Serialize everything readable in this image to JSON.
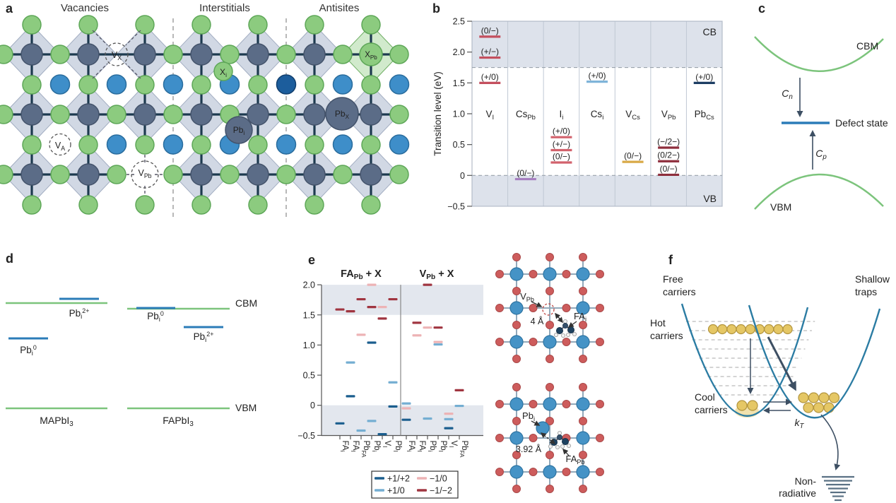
{
  "figure": {
    "panels": {
      "a": {
        "label": "a",
        "sections": [
          "Vacancies",
          "Interstitials",
          "Antisites"
        ],
        "defects": {
          "vx": "V_{X}",
          "va": "V_{A}",
          "vpb": "V_{Pb}",
          "xi": "X_{i}",
          "pbi": "Pb_{i}",
          "xpb": "X_{Pb}",
          "pbx": "Pb_{X}"
        }
      },
      "b": {
        "label": "b"
      },
      "c": {
        "label": "c",
        "cbm": "CBM",
        "vbm": "VBM",
        "defect_state": "Defect state",
        "cn": "C_{n}",
        "cp": "C_{p}"
      },
      "d": {
        "label": "d",
        "mapbi3": "MAPbI_{3}",
        "fapbi3": "FAPbI_{3}",
        "cbm": "CBM",
        "vbm": "VBM",
        "m_pb2": "Pb_{i}^{2+}",
        "m_pb0": "Pb_{i}^{0}",
        "f_pb0": "Pb_{i}^{0}",
        "f_pb2": "Pb_{i}^{2+}"
      },
      "e": {
        "label": "e",
        "structures": {
          "vpb": "V_{Pb}",
          "dist1": "4 Å",
          "fai": "FA_{i}",
          "pbi": "Pb_{i}",
          "dist2": "3.92 Å",
          "fapb": "FA_{Pb}"
        }
      },
      "f": {
        "label": "f",
        "free": {
          "l1": "Free",
          "l2": "carriers"
        },
        "shallow": {
          "l1": "Shallow",
          "l2": "traps"
        },
        "hot": {
          "l1": "Hot",
          "l2": "carriers"
        },
        "cool": {
          "l1": "Cool",
          "l2": "carriers"
        },
        "kt": "k_{T}",
        "nonrad": {
          "l1": "Non-",
          "l2": "radiative"
        }
      }
    },
    "colors": {
      "halide_green": "#8ccb7f",
      "octahedron_gray": "#c5cedd",
      "lead_slate": "#5b6c87",
      "cation_blue": "#3e8ec9",
      "cation_dark_blue": "#1c5d9c",
      "band_shade": "#dde2eb",
      "band_green": "#7cc47c",
      "level_blue": "#2b7cb8",
      "parabola_blue": "#2b7ca3",
      "carrier_yellow": "#e5c765",
      "iodine_red": "#cd5c5c",
      "pb_node_blue": "#4593c6"
    }
  },
  "chart_data": [
    {
      "id": "b",
      "type": "transition-levels",
      "ylabel": "Transition level (eV)",
      "ymin": -0.5,
      "ymax": 2.5,
      "yticks": [
        {
          "label": "2.5",
          "value": 2.5
        },
        {
          "label": "2.0",
          "value": 2.0
        },
        {
          "label": "1.5",
          "value": 1.5
        },
        {
          "label": "1.0",
          "value": 1.0
        },
        {
          "label": "0.5",
          "value": 0.5
        },
        {
          "label": "0",
          "value": 0.0
        },
        {
          "label": "−0.5",
          "value": -0.5
        }
      ],
      "cb": {
        "label": "CB",
        "edge": 1.75
      },
      "vb": {
        "label": "VB",
        "edge": 0.0
      },
      "columns": [
        {
          "name": "V_{I}",
          "color": "#c44f5e",
          "levels": [
            {
              "label": "(0/−)",
              "value": 2.25
            },
            {
              "label": "(+/−)",
              "value": 1.91
            },
            {
              "label": "(+/0)",
              "value": 1.5
            }
          ]
        },
        {
          "name": "Cs_{Pb}",
          "color": "#a77fc0",
          "levels": [
            {
              "label": "(0/−)",
              "value": -0.06
            }
          ]
        },
        {
          "name": "I_{i}",
          "color": "#d2626c",
          "levels": [
            {
              "label": "(+/0)",
              "value": 0.62
            },
            {
              "label": "(+/−)",
              "value": 0.41
            },
            {
              "label": "(0/−)",
              "value": 0.21
            }
          ]
        },
        {
          "name": "Cs_{i}",
          "color": "#7fb4d9",
          "levels": [
            {
              "label": "(+/0)",
              "value": 1.52
            }
          ]
        },
        {
          "name": "V_{Cs}",
          "color": "#d9a946",
          "levels": [
            {
              "label": "(0/−)",
              "value": 0.22
            }
          ]
        },
        {
          "name": "V_{Pb}",
          "color": "#8e2e3c",
          "levels": [
            {
              "label": "(−/2−)",
              "value": 0.45
            },
            {
              "label": "(0/2−)",
              "value": 0.23
            },
            {
              "label": "(0/−)",
              "value": 0.01
            }
          ]
        },
        {
          "name": "Pb_{Cs}",
          "color": "#1c3d63",
          "levels": [
            {
              "label": "(+/0)",
              "value": 1.5
            }
          ]
        }
      ]
    },
    {
      "id": "e",
      "type": "scatter-levels",
      "ymin": -0.5,
      "ymax": 2.0,
      "yticks": [
        {
          "label": "2.0",
          "value": 2.0
        },
        {
          "label": "1.5",
          "value": 1.5
        },
        {
          "label": "1.0",
          "value": 1.0
        },
        {
          "label": "0.5",
          "value": 0.5
        },
        {
          "label": "0",
          "value": 0.0
        },
        {
          "label": "−0.5",
          "value": -0.5
        }
      ],
      "shaded_bands": [
        [
          1.5,
          2.0
        ],
        [
          -0.5,
          0.0
        ]
      ],
      "charge_colors": {
        "+1/+2": "#1b5e8e",
        "+1/0": "#74aed2",
        "−1/0": "#edb3b5",
        "−1/−2": "#a03540"
      },
      "legend": [
        {
          "label": "+1/+2",
          "color": "#1b5e8e"
        },
        {
          "label": "+1/0",
          "color": "#74aed2"
        },
        {
          "label": "−1/0",
          "color": "#edb3b5"
        },
        {
          "label": "−1/−2",
          "color": "#a03540"
        }
      ],
      "groups": [
        {
          "title": "FA_{Pb} + X",
          "columns": [
            {
              "label": "FA_{i}",
              "marks": [
                {
                  "charge": "−1/−2",
                  "value": 1.59
                },
                {
                  "charge": "+1/+2",
                  "value": -0.3
                }
              ]
            },
            {
              "label": "FA_{I}",
              "marks": [
                {
                  "charge": "−1/−2",
                  "value": 1.56
                },
                {
                  "charge": "+1/0",
                  "value": 0.71
                },
                {
                  "charge": "+1/+2",
                  "value": 0.15
                }
              ]
            },
            {
              "label": "Pb_{FA}",
              "marks": [
                {
                  "charge": "−1/−2",
                  "value": 1.76
                },
                {
                  "charge": "−1/0",
                  "value": 1.17
                },
                {
                  "charge": "+1/0",
                  "value": -0.42
                }
              ]
            },
            {
              "label": "Pb_{i}",
              "marks": [
                {
                  "charge": "−1/0",
                  "value": 2.0
                },
                {
                  "charge": "−1/−2",
                  "value": 1.63
                },
                {
                  "charge": "+1/+2",
                  "value": 1.04
                },
                {
                  "charge": "+1/0",
                  "value": -0.26
                }
              ]
            },
            {
              "label": "V_{I}",
              "marks": [
                {
                  "charge": "−1/0",
                  "value": 1.63
                },
                {
                  "charge": "−1/−2",
                  "value": 1.44
                },
                {
                  "charge": "+1/+2",
                  "value": -0.48
                }
              ]
            },
            {
              "label": "Pb_{I}",
              "marks": [
                {
                  "charge": "−1/−2",
                  "value": 1.76
                },
                {
                  "charge": "+1/0",
                  "value": 0.38
                },
                {
                  "charge": "+1/+2",
                  "value": -0.02
                }
              ]
            }
          ]
        },
        {
          "title": "V_{Pb} + X",
          "columns": [
            {
              "label": "FA_{i}",
              "marks": [
                {
                  "charge": "+1/0",
                  "value": 0.03
                },
                {
                  "charge": "−1/0",
                  "value": -0.05
                },
                {
                  "charge": "+1/+2",
                  "value": -0.24
                }
              ]
            },
            {
              "label": "FA_{I}",
              "marks": [
                {
                  "charge": "−1/−2",
                  "value": 1.37
                },
                {
                  "charge": "−1/0",
                  "value": 1.16
                }
              ]
            },
            {
              "label": "Pb_{i}",
              "marks": [
                {
                  "charge": "−1/−2",
                  "value": 2.0
                },
                {
                  "charge": "−1/0",
                  "value": 1.29
                },
                {
                  "charge": "+1/0",
                  "value": -0.22
                }
              ]
            },
            {
              "label": "Pb_{I}",
              "marks": [
                {
                  "charge": "−1/−2",
                  "value": 1.29
                },
                {
                  "charge": "−1/0",
                  "value": 1.05
                },
                {
                  "charge": "+1/0",
                  "value": 1.01
                }
              ]
            },
            {
              "label": "V_{I}",
              "marks": [
                {
                  "charge": "−1/0",
                  "value": -0.14
                },
                {
                  "charge": "+1/0",
                  "value": -0.23
                },
                {
                  "charge": "+1/+2",
                  "value": -0.38
                }
              ]
            },
            {
              "label": "Pb_{FA}",
              "marks": [
                {
                  "charge": "−1/−2",
                  "value": 0.25
                },
                {
                  "charge": "+1/0",
                  "value": -0.01
                }
              ]
            }
          ]
        }
      ]
    }
  ]
}
